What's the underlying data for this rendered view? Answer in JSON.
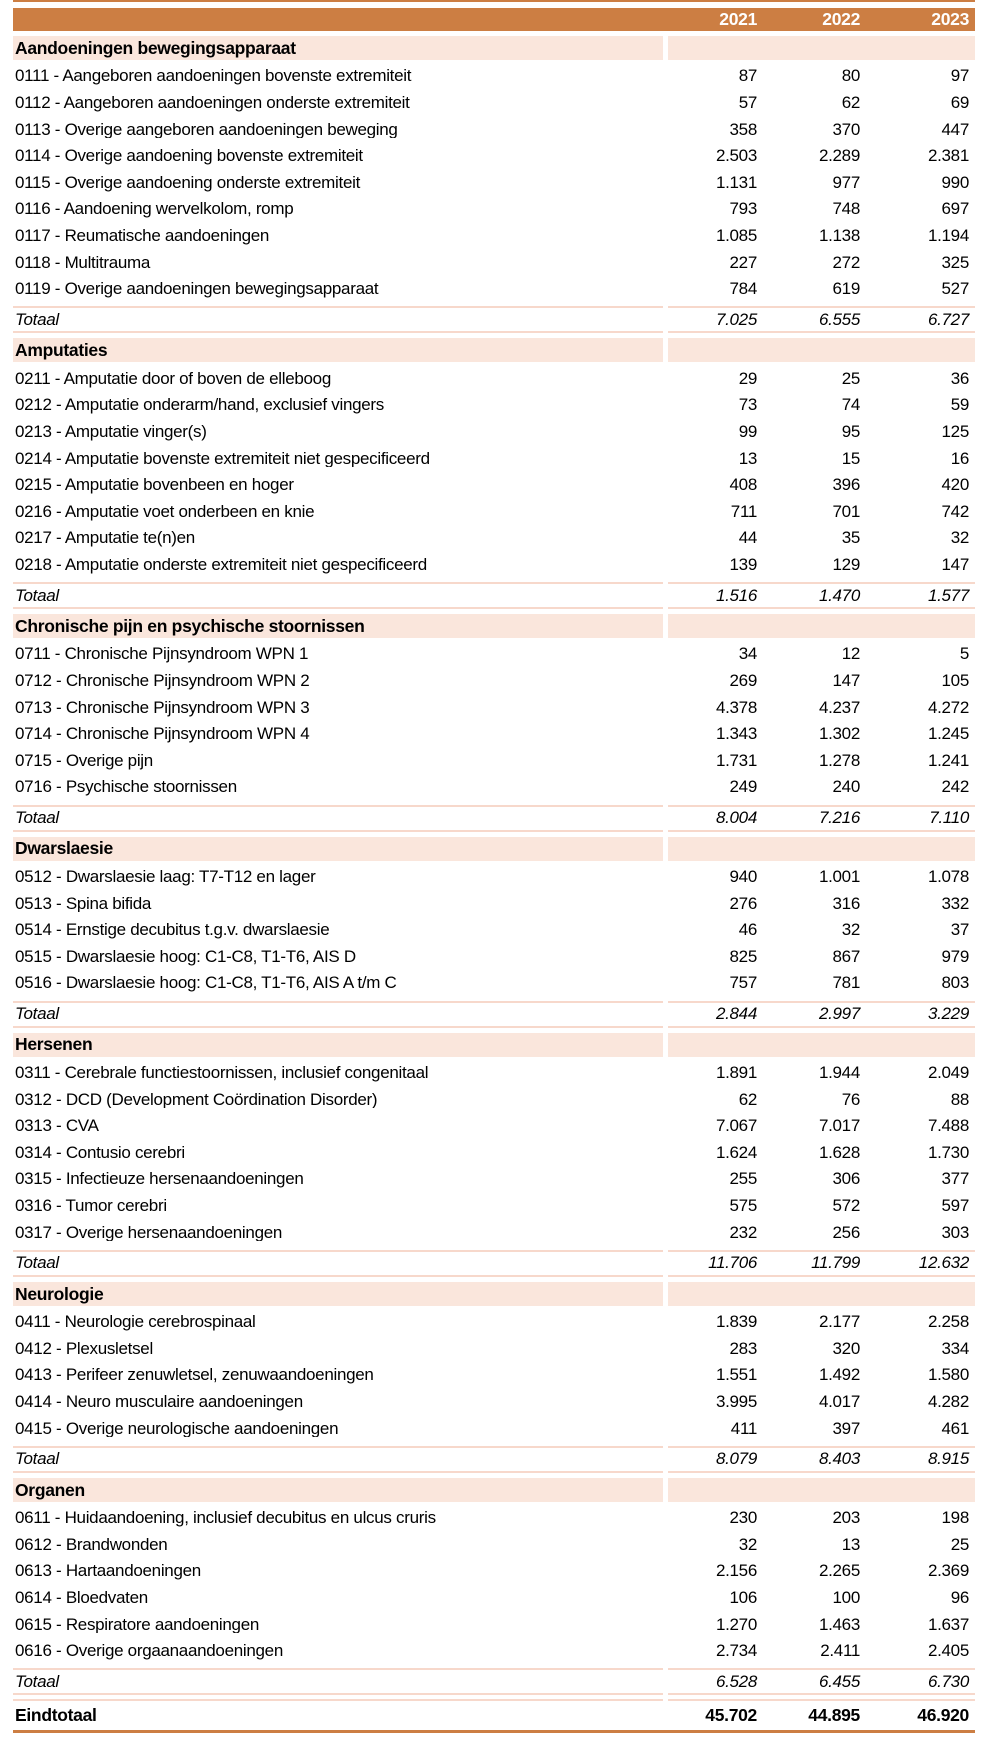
{
  "header": {
    "years": [
      "2021",
      "2022",
      "2023"
    ]
  },
  "sections": [
    {
      "title": "Aandoeningen bewegingsapparaat",
      "rows": [
        {
          "label": "0111 - Aangeboren aandoeningen bovenste extremiteit",
          "values": [
            "87",
            "80",
            "97"
          ]
        },
        {
          "label": "0112 - Aangeboren aandoeningen onderste extremiteit",
          "values": [
            "57",
            "62",
            "69"
          ]
        },
        {
          "label": "0113 - Overige aangeboren aandoeningen beweging",
          "values": [
            "358",
            "370",
            "447"
          ]
        },
        {
          "label": "0114 - Overige aandoening bovenste extremiteit",
          "values": [
            "2.503",
            "2.289",
            "2.381"
          ]
        },
        {
          "label": "0115 - Overige aandoening onderste extremiteit",
          "values": [
            "1.131",
            "977",
            "990"
          ]
        },
        {
          "label": "0116 - Aandoening wervelkolom, romp",
          "values": [
            "793",
            "748",
            "697"
          ]
        },
        {
          "label": "0117 - Reumatische aandoeningen",
          "values": [
            "1.085",
            "1.138",
            "1.194"
          ]
        },
        {
          "label": "0118 - Multitrauma",
          "values": [
            "227",
            "272",
            "325"
          ]
        },
        {
          "label": "0119 - Overige aandoeningen bewegingsapparaat",
          "values": [
            "784",
            "619",
            "527"
          ]
        }
      ],
      "total": {
        "label": "Totaal",
        "values": [
          "7.025",
          "6.555",
          "6.727"
        ]
      }
    },
    {
      "title": "Amputaties",
      "rows": [
        {
          "label": "0211 - Amputatie door of boven de elleboog",
          "values": [
            "29",
            "25",
            "36"
          ]
        },
        {
          "label": "0212 - Amputatie onderarm/hand, exclusief vingers",
          "values": [
            "73",
            "74",
            "59"
          ]
        },
        {
          "label": "0213 - Amputatie vinger(s)",
          "values": [
            "99",
            "95",
            "125"
          ]
        },
        {
          "label": "0214 - Amputatie bovenste extremiteit niet gespecificeerd",
          "values": [
            "13",
            "15",
            "16"
          ]
        },
        {
          "label": "0215 - Amputatie bovenbeen en hoger",
          "values": [
            "408",
            "396",
            "420"
          ]
        },
        {
          "label": "0216 - Amputatie voet onderbeen en knie",
          "values": [
            "711",
            "701",
            "742"
          ]
        },
        {
          "label": "0217 - Amputatie te(n)en",
          "values": [
            "44",
            "35",
            "32"
          ]
        },
        {
          "label": "0218 - Amputatie onderste extremiteit niet gespecificeerd",
          "values": [
            "139",
            "129",
            "147"
          ]
        }
      ],
      "total": {
        "label": "Totaal",
        "values": [
          "1.516",
          "1.470",
          "1.577"
        ]
      }
    },
    {
      "title": "Chronische pijn en psychische stoornissen",
      "rows": [
        {
          "label": "0711 - Chronische Pijnsyndroom WPN 1",
          "values": [
            "34",
            "12",
            "5"
          ]
        },
        {
          "label": "0712 - Chronische Pijnsyndroom WPN 2",
          "values": [
            "269",
            "147",
            "105"
          ]
        },
        {
          "label": "0713 - Chronische Pijnsyndroom WPN 3",
          "values": [
            "4.378",
            "4.237",
            "4.272"
          ]
        },
        {
          "label": "0714 - Chronische Pijnsyndroom WPN 4",
          "values": [
            "1.343",
            "1.302",
            "1.245"
          ]
        },
        {
          "label": "0715 - Overige pijn",
          "values": [
            "1.731",
            "1.278",
            "1.241"
          ]
        },
        {
          "label": "0716 - Psychische stoornissen",
          "values": [
            "249",
            "240",
            "242"
          ]
        }
      ],
      "total": {
        "label": "Totaal",
        "values": [
          "8.004",
          "7.216",
          "7.110"
        ]
      }
    },
    {
      "title": "Dwarslaesie",
      "rows": [
        {
          "label": "0512 - Dwarslaesie laag: T7-T12 en lager",
          "values": [
            "940",
            "1.001",
            "1.078"
          ]
        },
        {
          "label": "0513 - Spina bifida",
          "values": [
            "276",
            "316",
            "332"
          ]
        },
        {
          "label": "0514 - Ernstige decubitus t.g.v. dwarslaesie",
          "values": [
            "46",
            "32",
            "37"
          ]
        },
        {
          "label": "0515 - Dwarslaesie hoog: C1-C8, T1-T6, AIS D",
          "values": [
            "825",
            "867",
            "979"
          ]
        },
        {
          "label": "0516 - Dwarslaesie hoog: C1-C8, T1-T6, AIS A t/m C",
          "values": [
            "757",
            "781",
            "803"
          ]
        }
      ],
      "total": {
        "label": "Totaal",
        "values": [
          "2.844",
          "2.997",
          "3.229"
        ]
      }
    },
    {
      "title": "Hersenen",
      "rows": [
        {
          "label": "0311 - Cerebrale functiestoornissen, inclusief congenitaal",
          "values": [
            "1.891",
            "1.944",
            "2.049"
          ]
        },
        {
          "label": "0312 - DCD (Development Coördination Disorder)",
          "values": [
            "62",
            "76",
            "88"
          ]
        },
        {
          "label": "0313 - CVA",
          "values": [
            "7.067",
            "7.017",
            "7.488"
          ]
        },
        {
          "label": "0314 - Contusio cerebri",
          "values": [
            "1.624",
            "1.628",
            "1.730"
          ]
        },
        {
          "label": "0315 - Infectieuze hersenaandoeningen",
          "values": [
            "255",
            "306",
            "377"
          ]
        },
        {
          "label": "0316 - Tumor cerebri",
          "values": [
            "575",
            "572",
            "597"
          ]
        },
        {
          "label": "0317 - Overige hersenaandoeningen",
          "values": [
            "232",
            "256",
            "303"
          ]
        }
      ],
      "total": {
        "label": "Totaal",
        "values": [
          "11.706",
          "11.799",
          "12.632"
        ]
      }
    },
    {
      "title": "Neurologie",
      "rows": [
        {
          "label": "0411 - Neurologie cerebrospinaal",
          "values": [
            "1.839",
            "2.177",
            "2.258"
          ]
        },
        {
          "label": "0412 - Plexusletsel",
          "values": [
            "283",
            "320",
            "334"
          ]
        },
        {
          "label": "0413 - Perifeer zenuwletsel, zenuwaandoeningen",
          "values": [
            "1.551",
            "1.492",
            "1.580"
          ]
        },
        {
          "label": "0414 - Neuro musculaire aandoeningen",
          "values": [
            "3.995",
            "4.017",
            "4.282"
          ]
        },
        {
          "label": "0415 - Overige neurologische aandoeningen",
          "values": [
            "411",
            "397",
            "461"
          ]
        }
      ],
      "total": {
        "label": "Totaal",
        "values": [
          "8.079",
          "8.403",
          "8.915"
        ]
      }
    },
    {
      "title": "Organen",
      "rows": [
        {
          "label": "0611 - Huidaandoening, inclusief decubitus en ulcus cruris",
          "values": [
            "230",
            "203",
            "198"
          ]
        },
        {
          "label": "0612 - Brandwonden",
          "values": [
            "32",
            "13",
            "25"
          ]
        },
        {
          "label": "0613 - Hartaandoeningen",
          "values": [
            "2.156",
            "2.265",
            "2.369"
          ]
        },
        {
          "label": "0614 - Bloedvaten",
          "values": [
            "106",
            "100",
            "96"
          ]
        },
        {
          "label": "0615 - Respiratore aandoeningen",
          "values": [
            "1.270",
            "1.463",
            "1.637"
          ]
        },
        {
          "label": "0616 - Overige orgaanaandoeningen",
          "values": [
            "2.734",
            "2.411",
            "2.405"
          ]
        }
      ],
      "total": {
        "label": "Totaal",
        "values": [
          "6.528",
          "6.455",
          "6.730"
        ]
      }
    }
  ],
  "grand_total": {
    "label": "Eindtotaal",
    "values": [
      "45.702",
      "44.895",
      "46.920"
    ]
  },
  "colors": {
    "header_bg": "#CC7E43",
    "section_bg": "#FAE6DC",
    "divider_line": "#F7D8CB",
    "header_text": "#FFFFFF",
    "body_text": "#000000"
  }
}
